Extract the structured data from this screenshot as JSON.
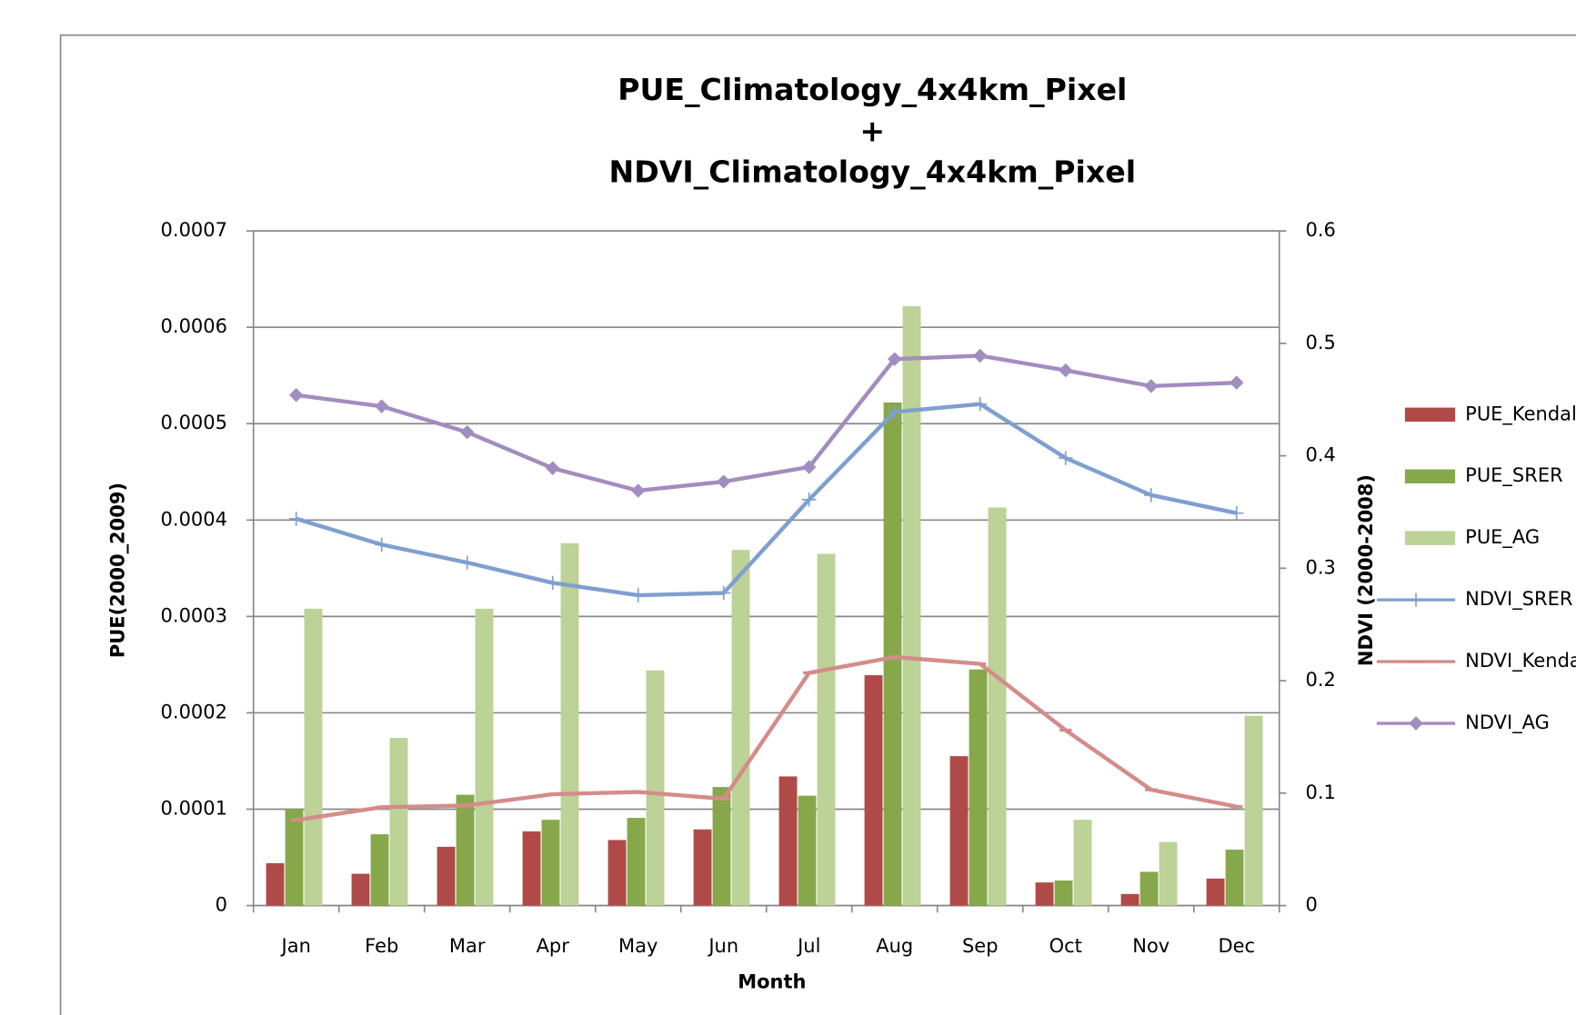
{
  "chart_data": {
    "type": "bar_line",
    "title": [
      "PUE_Climatology_4x4km_Pixel",
      "+",
      "NDVI_Climatology_4x4km_Pixel"
    ],
    "x_label": "Month",
    "y_label": "PUE(2000_2009)",
    "y2_label": "NDVI (2000-2008)",
    "categories": [
      "Jan",
      "Feb",
      "Mar",
      "Apr",
      "May",
      "Jun",
      "Jul",
      "Aug",
      "Sep",
      "Oct",
      "Nov",
      "Dec"
    ],
    "ylim": [
      0,
      0.0007
    ],
    "yticks": [
      0,
      0.0001,
      0.0002,
      0.0003,
      0.0004,
      0.0005,
      0.0006,
      0.0007
    ],
    "y2lim": [
      0,
      0.6
    ],
    "y2ticks": [
      0,
      0.1,
      0.2,
      0.3,
      0.4,
      0.5,
      0.6
    ],
    "grid": true,
    "legend": "right",
    "series": [
      {
        "name": "PUE_Kendall",
        "type": "bar",
        "color": "#b04a48",
        "values": [
          4.4e-05,
          3.3e-05,
          6.1e-05,
          7.7e-05,
          6.8e-05,
          7.9e-05,
          0.000134,
          0.000239,
          0.000155,
          2.4e-05,
          1.2e-05,
          2.8e-05
        ]
      },
      {
        "name": "PUE_SRER",
        "type": "bar",
        "color": "#86a84a",
        "values": [
          0.0001,
          7.4e-05,
          0.000115,
          8.9e-05,
          9.1e-05,
          0.000123,
          0.000114,
          0.000522,
          0.000245,
          2.6e-05,
          3.5e-05,
          5.8e-05
        ]
      },
      {
        "name": "PUE_AG",
        "type": "bar",
        "color": "#bcd296",
        "values": [
          0.000308,
          0.000174,
          0.000308,
          0.000376,
          0.000244,
          0.000369,
          0.000365,
          0.000622,
          0.000413,
          8.9e-05,
          6.6e-05,
          0.000197
        ]
      },
      {
        "name": "NDVI_SRER",
        "type": "line",
        "axis": "y2",
        "marker": "plus",
        "color": "#7f9fcf",
        "values": [
          0.344,
          0.321,
          0.305,
          0.287,
          0.276,
          0.278,
          0.361,
          0.439,
          0.446,
          0.398,
          0.365,
          0.349
        ]
      },
      {
        "name": "NDVI_Kendall",
        "type": "line",
        "axis": "y2",
        "marker": "dash",
        "color": "#d48c8a",
        "values": [
          0.076,
          0.0875,
          0.089,
          0.099,
          0.101,
          0.095,
          0.207,
          0.221,
          0.215,
          0.156,
          0.103,
          0.088
        ]
      },
      {
        "name": "NDVI_AG",
        "type": "line",
        "axis": "y2",
        "marker": "diamond",
        "color": "#a38cbf",
        "values": [
          0.454,
          0.444,
          0.421,
          0.389,
          0.369,
          0.377,
          0.39,
          0.486,
          0.489,
          0.476,
          0.462,
          0.465
        ]
      }
    ]
  }
}
